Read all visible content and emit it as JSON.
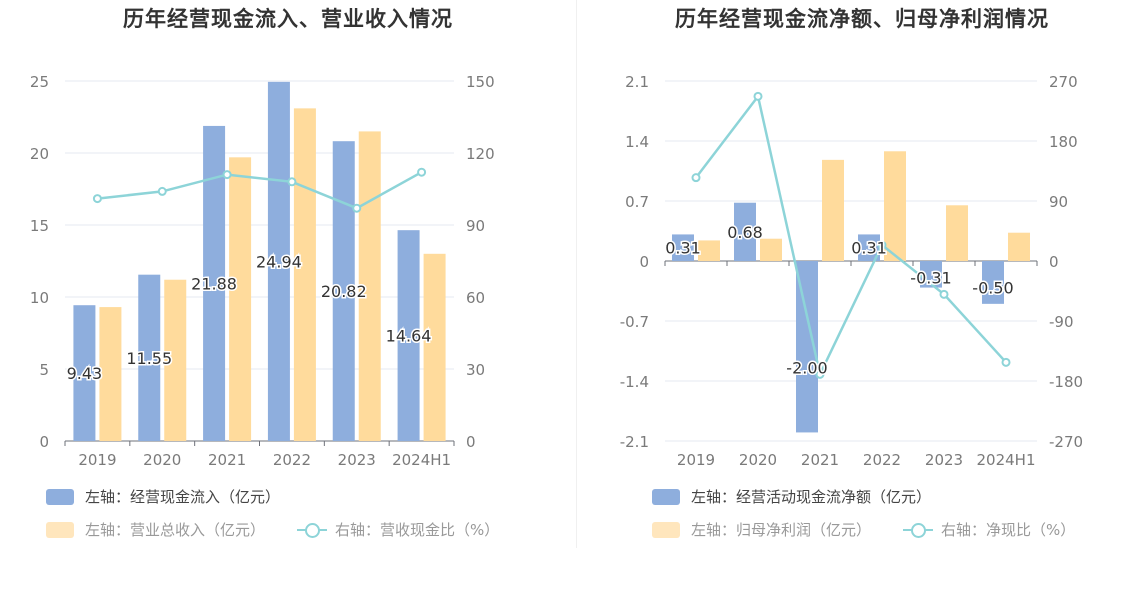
{
  "colors": {
    "bar_primary": "#8eaedd",
    "bar_secondary": "#ffdb9c",
    "line": "#8dd4d8",
    "grid": "#e4e8f2",
    "tick_text": "#7a7a7a",
    "label_text": "#333333"
  },
  "chart_data": [
    {
      "type": "bar",
      "title": "历年经营现金流入、营业收入情况",
      "categories": [
        "2019",
        "2020",
        "2021",
        "2022",
        "2023",
        "2024H1"
      ],
      "left_axis": {
        "ylim": [
          0,
          25
        ],
        "ticks": [
          "0",
          "5",
          "10",
          "15",
          "20",
          "25"
        ]
      },
      "right_axis": {
        "ylim": [
          0,
          150
        ],
        "ticks": [
          "0",
          "30",
          "60",
          "90",
          "120",
          "150"
        ]
      },
      "grid": true,
      "series": [
        {
          "name": "左轴：经营现金流入（亿元）",
          "type": "bar",
          "axis": "left",
          "values": [
            9.43,
            11.55,
            21.88,
            24.94,
            20.82,
            14.64
          ],
          "labels": [
            "9.43",
            "11.55",
            "21.88",
            "24.94",
            "20.82",
            "14.64"
          ]
        },
        {
          "name": "左轴：营业总收入（亿元）",
          "type": "bar",
          "axis": "left",
          "values": [
            9.3,
            11.2,
            19.7,
            23.1,
            21.5,
            13.0
          ]
        },
        {
          "name": "右轴：营收现金比（%）",
          "type": "line",
          "axis": "right",
          "values": [
            101,
            104,
            111,
            108,
            97,
            112
          ]
        }
      ],
      "legend": {
        "position": "bottom-left"
      }
    },
    {
      "type": "bar",
      "title": "历年经营现金流净额、归母净利润情况",
      "categories": [
        "2019",
        "2020",
        "2021",
        "2022",
        "2023",
        "2024H1"
      ],
      "left_axis": {
        "ylim": [
          -2.1,
          2.1
        ],
        "ticks": [
          "-2.1",
          "-1.4",
          "-0.7",
          "0",
          "0.7",
          "1.4",
          "2.1"
        ]
      },
      "right_axis": {
        "ylim": [
          -270,
          270
        ],
        "ticks": [
          "-270",
          "-180",
          "-90",
          "0",
          "90",
          "180",
          "270"
        ]
      },
      "grid": true,
      "series": [
        {
          "name": "左轴：经营活动现金流净额（亿元）",
          "type": "bar",
          "axis": "left",
          "values": [
            0.31,
            0.68,
            -2.0,
            0.31,
            -0.31,
            -0.5
          ],
          "labels": [
            "0.31",
            "0.68",
            "-2.00",
            "0.31",
            "-0.31",
            "-0.50"
          ]
        },
        {
          "name": "左轴：归母净利润（亿元）",
          "type": "bar",
          "axis": "left",
          "values": [
            0.24,
            0.26,
            1.18,
            1.28,
            0.65,
            0.33
          ]
        },
        {
          "name": "右轴：净现比（%）",
          "type": "line",
          "axis": "right",
          "values": [
            125,
            247,
            -170,
            24,
            -50,
            -152
          ]
        }
      ],
      "legend": {
        "position": "bottom-left"
      }
    }
  ]
}
